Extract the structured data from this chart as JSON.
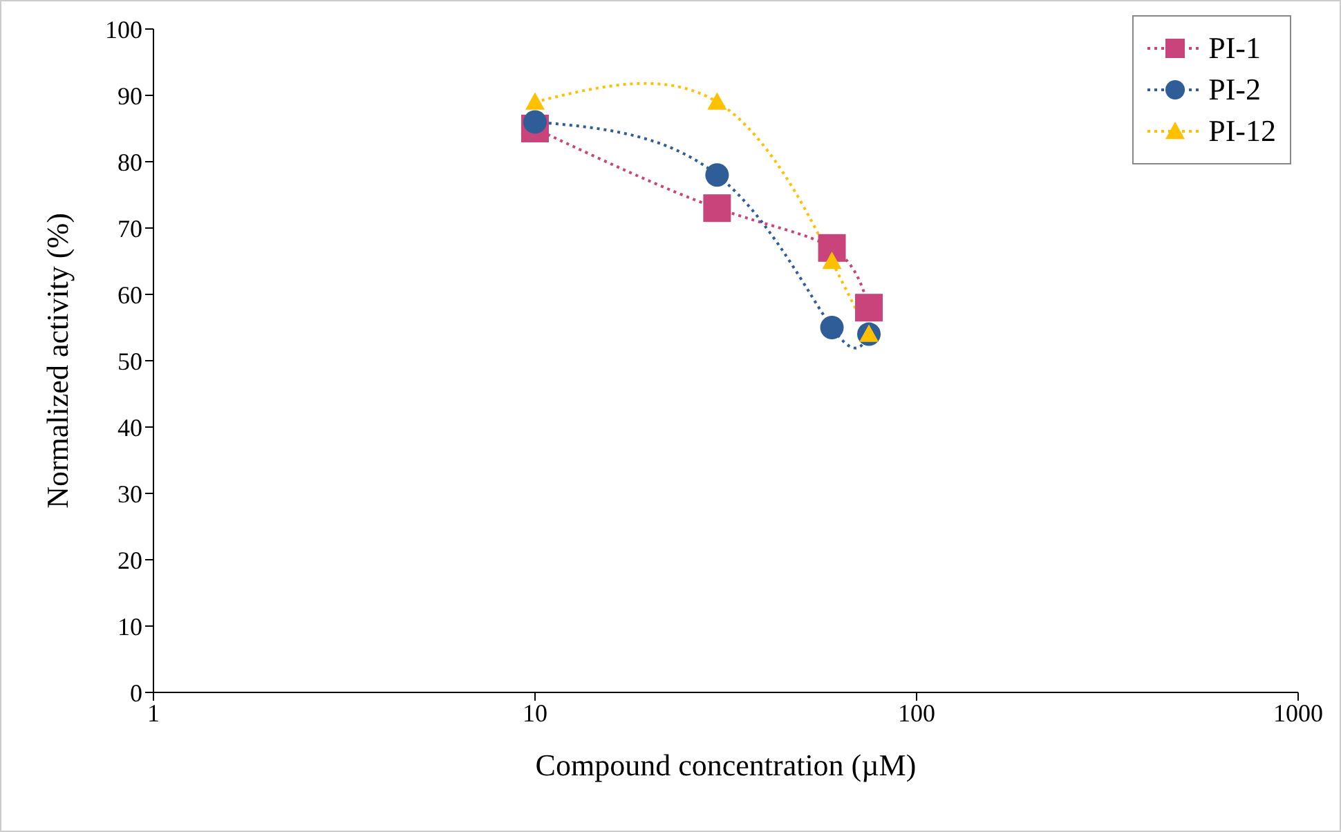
{
  "chart_data": {
    "type": "line",
    "xlabel": "Compound concentration (µM)",
    "ylabel": "Normalized activity (%)",
    "log": "x",
    "xlim": [
      1,
      1000
    ],
    "xticks": [
      1,
      10,
      100,
      1000
    ],
    "ylim": [
      0,
      100
    ],
    "yticks": [
      0,
      10,
      20,
      30,
      40,
      50,
      60,
      70,
      80,
      90,
      100
    ],
    "grid": false,
    "legend": "top right",
    "line_style": "dotted",
    "series": [
      {
        "name": "PI-1",
        "color": "#c8447a",
        "marker": "square",
        "x": [
          10,
          30,
          60,
          75
        ],
        "values": [
          85,
          73,
          67,
          58
        ]
      },
      {
        "name": "PI-2",
        "color": "#2f5d98",
        "marker": "circle",
        "x": [
          10,
          30,
          60,
          75
        ],
        "values": [
          86,
          78,
          55,
          54
        ]
      },
      {
        "name": "PI-12",
        "color": "#ffc000",
        "marker": "triangle",
        "x": [
          10,
          30,
          60,
          75
        ],
        "values": [
          89,
          89,
          65,
          54
        ]
      }
    ]
  }
}
